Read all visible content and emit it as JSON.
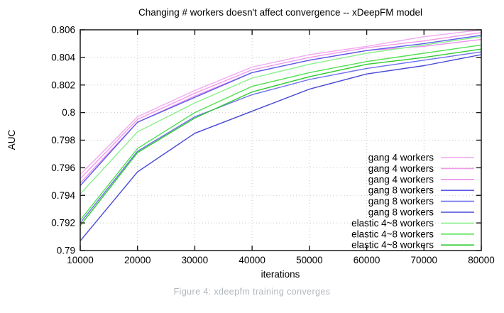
{
  "figure": {
    "caption": "Figure 4: xdeepfm training converges"
  },
  "chart_data": {
    "type": "line",
    "title": "Changing # workers doesn't affect convergence -- xDeepFM model",
    "xlabel": "iterations",
    "ylabel": "AUC",
    "xlim": [
      10000,
      80000
    ],
    "ylim": [
      0.79,
      0.806
    ],
    "grid": true,
    "legend_position": "inside bottom-right",
    "x_tick_labels": [
      "10000",
      "20000",
      "30000",
      "40000",
      "50000",
      "60000",
      "70000",
      "80000"
    ],
    "y_tick_labels": [
      "0.79",
      "0.792",
      "0.794",
      "0.796",
      "0.798",
      "0.8",
      "0.802",
      "0.804",
      "0.806"
    ],
    "x": [
      10000,
      20000,
      30000,
      40000,
      50000,
      60000,
      70000,
      80000
    ],
    "series": [
      {
        "name": "gang 4 workers",
        "color": "#f2aaf2",
        "values": [
          0.7955,
          0.7997,
          0.8016,
          0.8033,
          0.8042,
          0.8048,
          0.8055,
          0.806
        ]
      },
      {
        "name": "gang 4 workers",
        "color": "#f09ae8",
        "values": [
          0.7952,
          0.7995,
          0.8014,
          0.8031,
          0.804,
          0.8047,
          0.8052,
          0.8058
        ]
      },
      {
        "name": "gang 4 workers",
        "color": "#ee8eee",
        "values": [
          0.7949,
          0.7993,
          0.8012,
          0.8029,
          0.8038,
          0.8045,
          0.8048,
          0.8053
        ]
      },
      {
        "name": "gang 8 workers",
        "color": "#5c5ce8",
        "values": [
          0.7947,
          0.7993,
          0.8011,
          0.8029,
          0.8038,
          0.8045,
          0.805,
          0.8056
        ]
      },
      {
        "name": "gang 8 workers",
        "color": "#6e6ef0",
        "values": [
          0.792,
          0.7972,
          0.7997,
          0.8013,
          0.8024,
          0.8032,
          0.8038,
          0.8044
        ]
      },
      {
        "name": "gang 8 workers",
        "color": "#4848d8",
        "values": [
          0.7907,
          0.7957,
          0.7985,
          0.8001,
          0.8017,
          0.8028,
          0.8034,
          0.8042
        ]
      },
      {
        "name": "elastic 4~8 workers",
        "color": "#8cf08c",
        "values": [
          0.7941,
          0.7986,
          0.8007,
          0.8025,
          0.8035,
          0.8043,
          0.8049,
          0.8055
        ]
      },
      {
        "name": "elastic 4~8 workers",
        "color": "#52e152",
        "values": [
          0.7922,
          0.7974,
          0.8,
          0.8019,
          0.8029,
          0.8037,
          0.8043,
          0.8049
        ]
      },
      {
        "name": "elastic 4~8 workers",
        "color": "#2ecc2e",
        "values": [
          0.7918,
          0.7971,
          0.7996,
          0.8015,
          0.8026,
          0.8035,
          0.804,
          0.8046
        ]
      }
    ]
  },
  "style_colors": {
    "frame": "#1a1a1a",
    "grid": "#c9c9c9",
    "chart_text": "#000000",
    "caption_text": "#b2b7bd"
  }
}
